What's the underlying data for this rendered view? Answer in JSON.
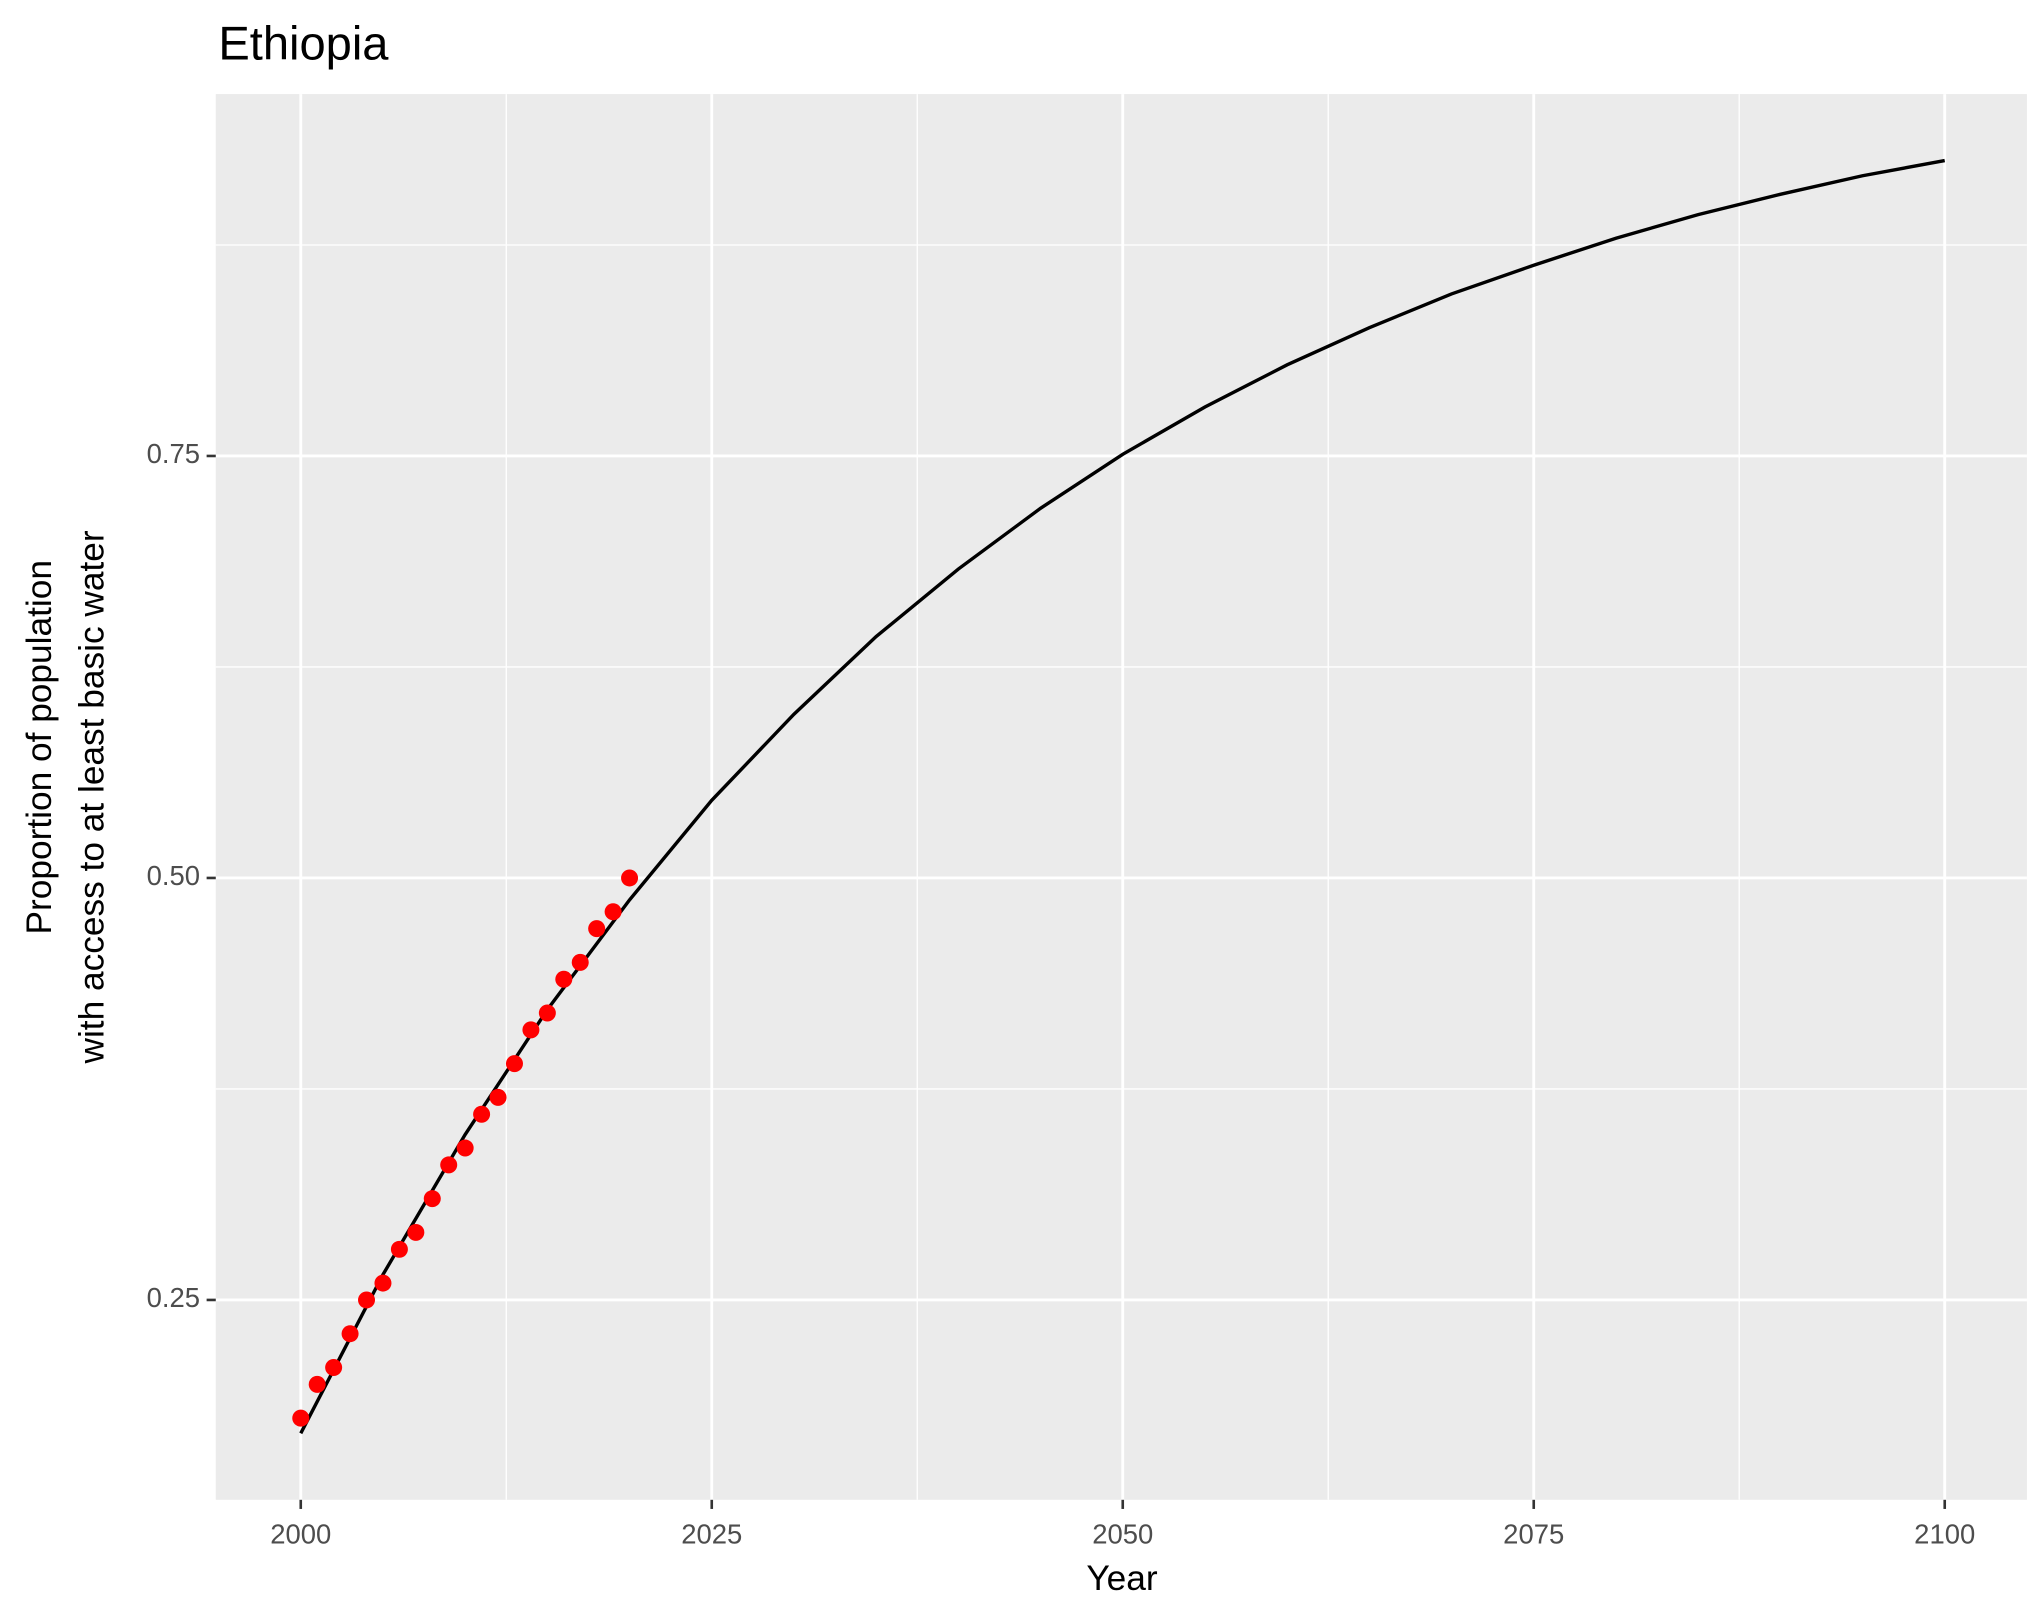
{
  "chart_data": {
    "type": "line",
    "title": "Ethiopia",
    "x_label": "Year",
    "y_label": [
      "Proportion of population",
      "with access to at least basic water"
    ],
    "xlim": [
      1994.83,
      2105.0
    ],
    "ylim": [
      0.1316,
      0.9644
    ],
    "xticks": [
      2000,
      2025,
      2050,
      2075,
      2100
    ],
    "yticks": [
      0.25,
      {
        "value": 0.5,
        "label": "0.50"
      },
      0.75
    ],
    "grid": true,
    "points": {
      "color": "#ff0000",
      "x": [
        2000,
        2001,
        2002,
        2003,
        2004,
        2005,
        2006,
        2007,
        2008,
        2009,
        2010,
        2011,
        2012,
        2013,
        2014,
        2015,
        2016,
        2017,
        2018,
        2019,
        2020
      ],
      "values": [
        0.18,
        0.2,
        0.21,
        0.23,
        0.25,
        0.26,
        0.28,
        0.29,
        0.31,
        0.33,
        0.34,
        0.36,
        0.37,
        0.39,
        0.41,
        0.42,
        0.44,
        0.45,
        0.47,
        0.48,
        0.5
      ]
    },
    "curve": {
      "color": "#000000",
      "x": [
        2000,
        2005,
        2010,
        2015,
        2020,
        2025,
        2030,
        2035,
        2040,
        2045,
        2050,
        2055,
        2060,
        2065,
        2070,
        2075,
        2080,
        2085,
        2090,
        2095,
        2100
      ],
      "values": [
        0.171,
        0.265,
        0.348,
        0.422,
        0.487,
        0.546,
        0.597,
        0.643,
        0.683,
        0.719,
        0.751,
        0.779,
        0.804,
        0.826,
        0.846,
        0.863,
        0.879,
        0.893,
        0.905,
        0.916,
        0.925
      ]
    }
  }
}
